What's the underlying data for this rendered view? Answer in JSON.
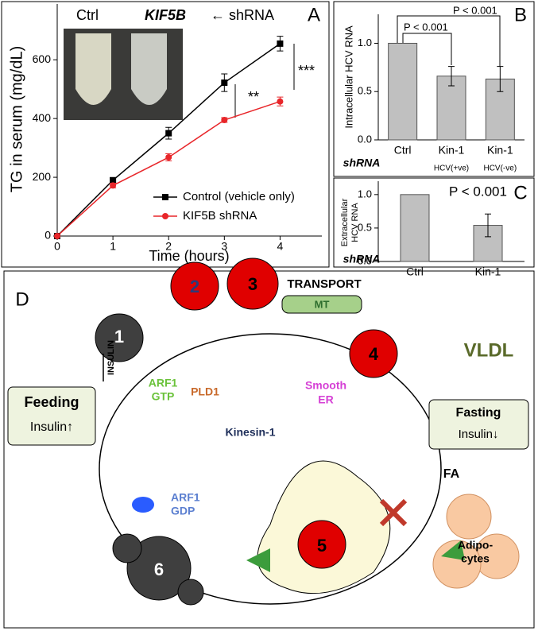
{
  "chart_data": [
    {
      "type": "line",
      "panel": "A",
      "ylabel": "TG in serum (mg/dL)",
      "xlabel": "Time (hours)",
      "x": [
        0,
        1,
        2,
        3,
        4
      ],
      "xlim": [
        0,
        4.75
      ],
      "xticks": [
        0,
        1,
        2,
        3,
        4
      ],
      "ylim": [
        0,
        790
      ],
      "yticks": [
        0,
        200,
        400,
        600
      ],
      "series": [
        {
          "name": "Control (vehicle only)",
          "color": "#000000",
          "marker": "square",
          "values": [
            0,
            190,
            350,
            522,
            655
          ],
          "errors": [
            0,
            8,
            20,
            30,
            25
          ]
        },
        {
          "name": "KIF5B shRNA",
          "color": "#e8262a",
          "marker": "circle",
          "values": [
            0,
            172,
            268,
            395,
            458
          ],
          "errors": [
            0,
            8,
            12,
            8,
            15
          ]
        }
      ],
      "legend": "lower right",
      "inset": {
        "left": "Ctrl",
        "right": "KIF5B",
        "note": "← shRNA"
      },
      "annotations": [
        "**",
        "***"
      ]
    },
    {
      "type": "bar",
      "panel": "B",
      "ylabel": "Intracellular HCV  RNA",
      "categories": [
        "Ctrl",
        "Kin-1",
        "Kin-1"
      ],
      "subcategories": [
        null,
        "HCV(+ve)",
        "HCV(-ve)"
      ],
      "values": [
        1.0,
        0.66,
        0.63
      ],
      "errors": [
        0,
        0.1,
        0.13
      ],
      "color": "#c0c0c0",
      "ylim": [
        0,
        1.3
      ],
      "yticks": [
        {
          "value": 0,
          "label": "0.0"
        },
        0.5,
        {
          "value": 1,
          "label": "1.0"
        }
      ],
      "axis_note": "shRNA",
      "annotations": [
        "P < 0.001",
        "P < 0.001"
      ]
    },
    {
      "type": "bar",
      "panel": "C",
      "ylabel": [
        "Extracellular",
        "HCV RNA"
      ],
      "categories": [
        "Ctrl",
        "Kin-1"
      ],
      "values": [
        1.0,
        0.54
      ],
      "errors": [
        0,
        0.17
      ],
      "color": "#c0c0c0",
      "ylim": [
        0,
        1.2
      ],
      "yticks": [
        {
          "value": 0,
          "label": "0.0"
        },
        0.5,
        {
          "value": 1,
          "label": "1.0"
        }
      ],
      "axis_note": "shRNA",
      "annotations": [
        "P < 0.001"
      ]
    }
  ],
  "diagram": {
    "panel": "D",
    "nodes": [
      "1",
      "2",
      "3",
      "4",
      "5",
      "6"
    ],
    "transport": "TRANSPORT",
    "mt": "MT",
    "vldl": "VLDL",
    "arf1_gtp": [
      "ARF1",
      "GTP"
    ],
    "pld1": "PLD1",
    "kinesin": "Kinesin-1",
    "smooth_er": [
      "Smooth",
      "ER"
    ],
    "feeding": {
      "title": "Feeding",
      "sub": "Insulin↑"
    },
    "insulin": "INSULIN",
    "arf1_gdp": [
      "ARF1",
      "GDP"
    ],
    "fasting": {
      "title": "Fasting",
      "sub": "Insulin↓"
    },
    "fa": "FA",
    "adipocytes": [
      "Adipo-",
      "cytes"
    ]
  }
}
